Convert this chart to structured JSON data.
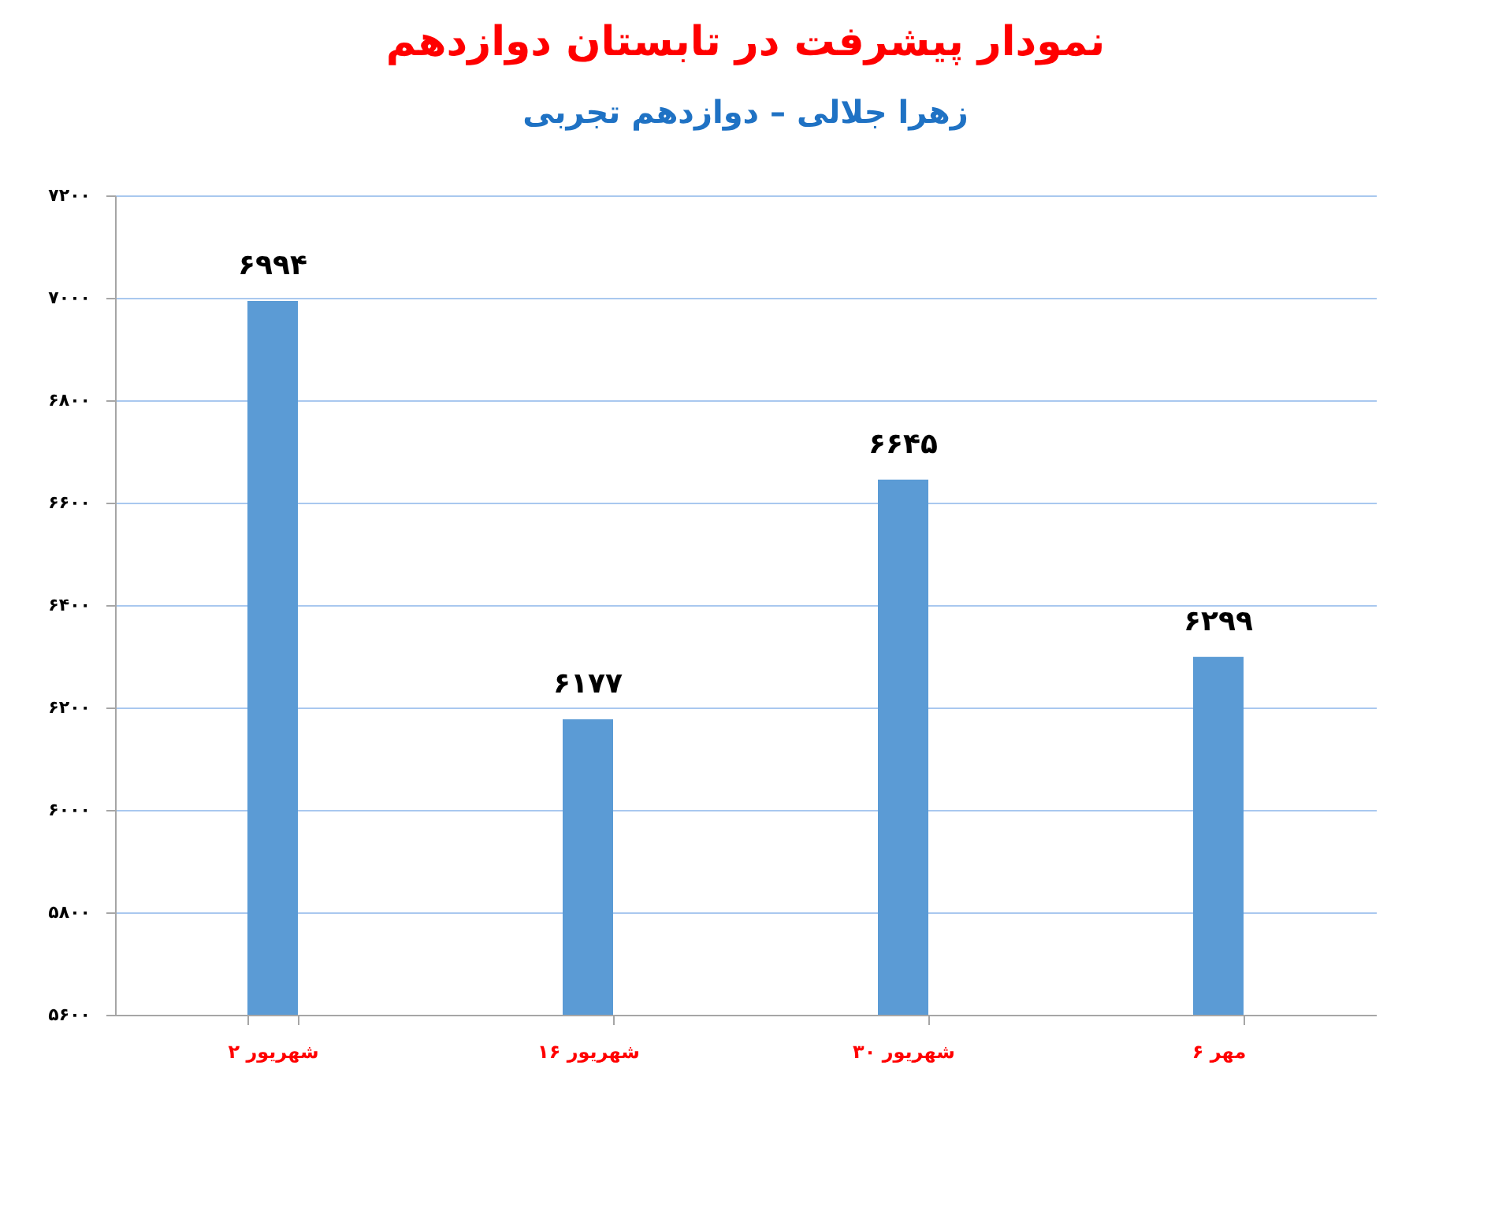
{
  "chart_data": {
    "type": "bar",
    "title": "نمودار پیشرفت در تابستان دوازدهم",
    "subtitle": "زهرا جلالی – دوازدهم تجربی",
    "categories": [
      "۲ شهریور",
      "۱۶ شهریور",
      "۳۰ شهریور",
      "۶ مهر"
    ],
    "values": [
      6994,
      6177,
      6645,
      6299
    ],
    "value_labels": [
      "۶۹۹۴",
      "۶۱۷۷",
      "۶۶۴۵",
      "۶۲۹۹"
    ],
    "color": "#5b9bd5",
    "ylim": [
      5600,
      7200
    ],
    "yticks": [
      {
        "value": 5600,
        "label": "۵۶۰۰"
      },
      {
        "value": 5800,
        "label": "۵۸۰۰"
      },
      {
        "value": 6000,
        "label": "۶۰۰۰"
      },
      {
        "value": 6200,
        "label": "۶۲۰۰"
      },
      {
        "value": 6400,
        "label": "۶۴۰۰"
      },
      {
        "value": 6600,
        "label": "۶۶۰۰"
      },
      {
        "value": 6800,
        "label": "۶۸۰۰"
      },
      {
        "value": 7000,
        "label": "۷۰۰۰"
      },
      {
        "value": 7200,
        "label": "۷۲۰۰"
      }
    ],
    "grid": "y"
  }
}
